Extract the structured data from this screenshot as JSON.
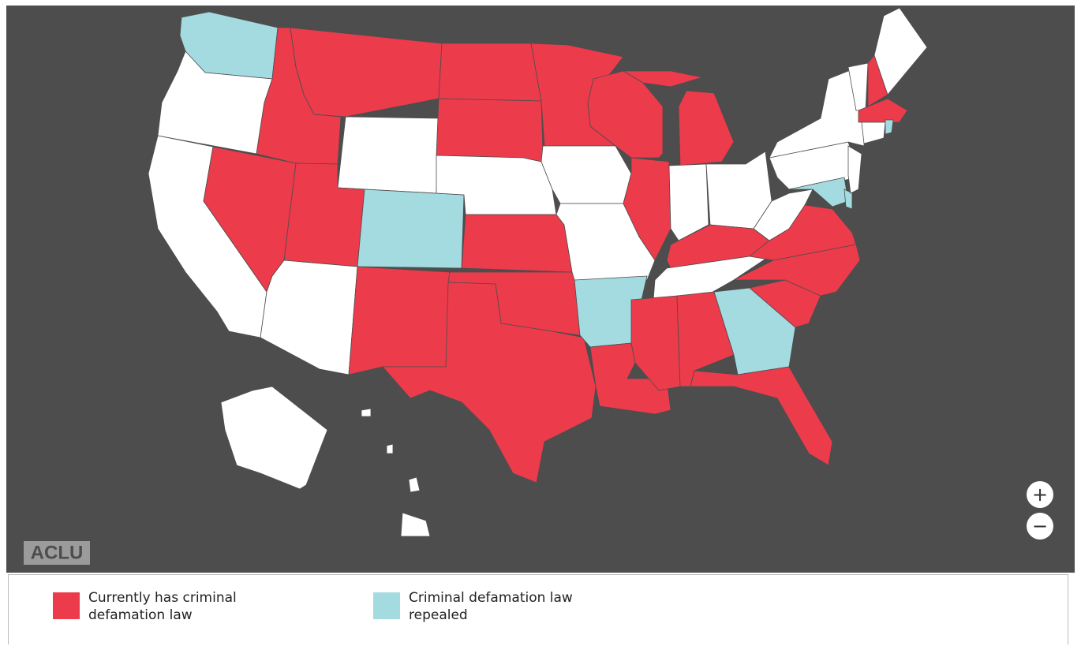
{
  "map": {
    "logo": "ACLU",
    "zoom_in": "+",
    "zoom_out": "−"
  },
  "legend": [
    {
      "label": "Currently has criminal defamation law",
      "color": "#ec3b4b"
    },
    {
      "label": "Criminal defamation law repealed",
      "color": "#a3dbe1"
    }
  ]
}
